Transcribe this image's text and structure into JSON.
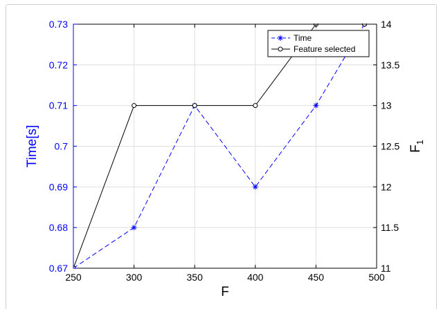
{
  "chart_data": {
    "type": "line",
    "xlabel": "F",
    "ylabel_left": "Time[s]",
    "ylabel_right_base": "F",
    "ylabel_right_sub": "1",
    "x_ticks": [
      250,
      300,
      350,
      400,
      450,
      500
    ],
    "xlim": [
      250,
      500
    ],
    "ylim_left": [
      0.67,
      0.73
    ],
    "ylim_right": [
      11,
      14
    ],
    "y_ticks_left": [
      "0.67",
      "0.68",
      "0.69",
      "0.7",
      "0.71",
      "0.72",
      "0.73"
    ],
    "y_ticks_right": [
      "11",
      "11.5",
      "12",
      "12.5",
      "13",
      "13.5",
      "14"
    ],
    "grid": true,
    "legend_position": "top-right",
    "series": [
      {
        "name": "Time",
        "axis": "left",
        "color": "#0000ff",
        "line_style": "dashed",
        "marker": "asterisk",
        "x": [
          250,
          300,
          350,
          400,
          450,
          490
        ],
        "y": [
          0.67,
          0.68,
          0.71,
          0.69,
          0.71,
          0.73
        ]
      },
      {
        "name": "Feature selected",
        "axis": "right",
        "color": "#000000",
        "line_style": "solid",
        "marker": "circle",
        "x": [
          250,
          300,
          350,
          400,
          450,
          490
        ],
        "y": [
          11,
          13,
          13,
          13,
          14,
          14
        ]
      }
    ]
  }
}
